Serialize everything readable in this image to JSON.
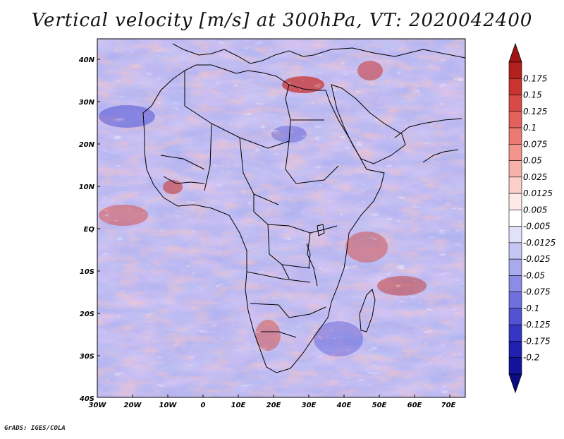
{
  "title": "Vertical velocity [m/s] at 300hPa, VT: 2020042400",
  "footer": "GrADS: IGES/COLA",
  "map": {
    "region": "Africa",
    "lat_labels": [
      "40N",
      "30N",
      "20N",
      "10N",
      "EQ",
      "10S",
      "20S",
      "30S",
      "40S"
    ],
    "lon_labels": [
      "30W",
      "20W",
      "10W",
      "0",
      "10E",
      "20E",
      "30E",
      "40E",
      "50E",
      "60E",
      "70E"
    ],
    "lat_range": [
      -40,
      45
    ],
    "lon_range": [
      -30,
      75
    ]
  },
  "colorbar": {
    "labels": [
      "0.175",
      "0.15",
      "0.125",
      "0.1",
      "0.075",
      "0.05",
      "0.025",
      "0.0125",
      "0.005",
      "-0.005",
      "-0.0125",
      "-0.025",
      "-0.05",
      "-0.075",
      "-0.1",
      "-0.125",
      "-0.175",
      "-0.2"
    ],
    "colors": [
      "#b3201d",
      "#c93330",
      "#d84a47",
      "#e4605b",
      "#ec7a73",
      "#f3958d",
      "#f7b1aa",
      "#fbcfca",
      "#fde9e6",
      "#ffffff",
      "#e1e1fb",
      "#c6c6f5",
      "#a9a9ee",
      "#8c8ce7",
      "#6f6fde",
      "#5252d3",
      "#3636c4",
      "#2020b0",
      "#12129a"
    ],
    "top_arrow_color": "#a11414",
    "bottom_arrow_color": "#0b0b85"
  }
}
